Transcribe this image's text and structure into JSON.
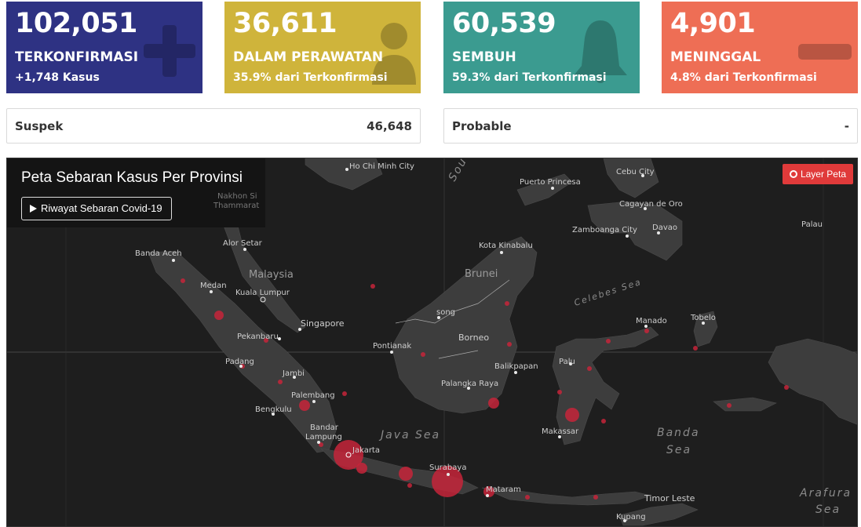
{
  "stats": {
    "confirmed": {
      "value": "102,051",
      "label": "TERKONFIRMASI",
      "sub": "+1,748 Kasus",
      "color": "#2e3283",
      "icon": "plus-icon"
    },
    "treated": {
      "value": "36,611",
      "label": "DALAM PERAWATAN",
      "sub": "35.9% dari Terkonfirmasi",
      "color": "#cfb43b",
      "icon": "patient-icon"
    },
    "recovered": {
      "value": "60,539",
      "label": "SEMBUH",
      "sub": "59.3% dari Terkonfirmasi",
      "color": "#3b9b90",
      "icon": "bell-icon"
    },
    "deaths": {
      "value": "4,901",
      "label": "MENINGGAL",
      "sub": "4.8% dari Terkonfirmasi",
      "color": "#ee6e55",
      "icon": "minus-icon"
    }
  },
  "suspect": {
    "label": "Suspek",
    "value": "46,648"
  },
  "probable": {
    "label": "Probable",
    "value": "-"
  },
  "map": {
    "title": "Peta Sebaran Kasus Per Provinsi",
    "history_button": "Riwayat Sebaran Covid-19",
    "layer_button": "Layer Peta",
    "places": {
      "ho_chi_minh": "Ho Chi Minh City",
      "cebu": "Cebu City",
      "puerto_princesa": "Puerto Princesa",
      "cagayan": "Cagayan de Oro",
      "nakhon": "Nakhon Si Thammarat",
      "palau": "Palau",
      "zamboanga": "Zamboanga City",
      "davao": "Davao",
      "alor_setar": "Alor Setar",
      "banda_aceh": "Banda Aceh",
      "kota_kinabalu": "Kota Kinabalu",
      "malaysia": "Malaysia",
      "brunei": "Brunei",
      "medan": "Medan",
      "kuala_lumpur": "Kuala Lumpur",
      "celebes_sea": "Celebes Sea",
      "singapore": "Singapore",
      "song": "song",
      "manado": "Manado",
      "tobelo": "Tobelo",
      "pekanbaru": "Pekanbaru",
      "borneo": "Borneo",
      "pontianak": "Pontianak",
      "padang": "Padang",
      "balikpapan": "Balikpapan",
      "palu": "Palu",
      "jambi": "Jambi",
      "palangka_raya": "Palangka Raya",
      "palembang": "Palembang",
      "bengkulu": "Bengkulu",
      "bandar_lampung_1": "Bandar",
      "bandar_lampung_2": "Lampung",
      "java_sea": "Java Sea",
      "makassar": "Makassar",
      "banda_sea_1": "Banda",
      "banda_sea_2": "Sea",
      "jakarta": "Jakarta",
      "surabaya": "Surabaya",
      "mataram": "Mataram",
      "timor_leste": "Timor Leste",
      "arafura_1": "Arafura",
      "arafura_2": "Sea",
      "kupang": "Kupang",
      "south_china_sea": "Sou"
    }
  }
}
